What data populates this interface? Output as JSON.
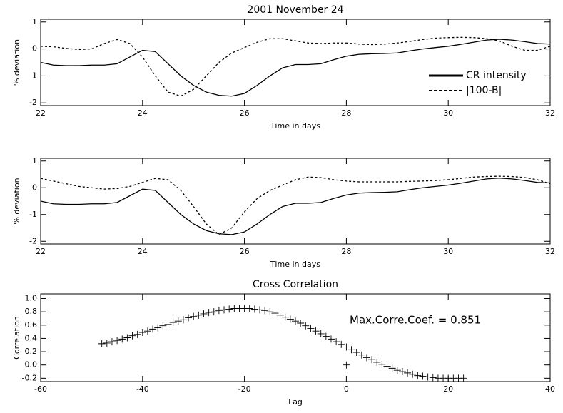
{
  "chart_data": [
    {
      "type": "line",
      "title": "2001 November    24",
      "xlabel": "Time in days",
      "ylabel": "% deviation",
      "x": [
        22,
        22.25,
        22.5,
        22.75,
        23,
        23.25,
        23.5,
        23.75,
        24,
        24.25,
        24.5,
        24.75,
        25,
        25.25,
        25.5,
        25.75,
        26,
        26.25,
        26.5,
        26.75,
        27,
        27.25,
        27.5,
        27.75,
        28,
        28.25,
        28.5,
        28.75,
        29,
        29.25,
        29.5,
        29.75,
        30,
        30.25,
        30.5,
        30.75,
        31,
        31.25,
        31.5,
        31.75,
        32
      ],
      "series": [
        {
          "name": "CR intensity",
          "color": "#000000",
          "linestyle": "solid",
          "values": [
            -0.5,
            -0.6,
            -0.62,
            -0.62,
            -0.6,
            -0.6,
            -0.55,
            -0.3,
            -0.05,
            -0.1,
            -0.55,
            -1.0,
            -1.35,
            -1.6,
            -1.72,
            -1.75,
            -1.65,
            -1.35,
            -1.0,
            -0.7,
            -0.58,
            -0.58,
            -0.55,
            -0.4,
            -0.27,
            -0.2,
            -0.18,
            -0.17,
            -0.15,
            -0.07,
            0.0,
            0.05,
            0.1,
            0.17,
            0.25,
            0.33,
            0.36,
            0.33,
            0.27,
            0.2,
            0.18
          ]
        },
        {
          "name": "|100-B|",
          "color": "#000000",
          "linestyle": "dashed",
          "values": [
            0.1,
            0.08,
            0.02,
            -0.02,
            0.0,
            0.2,
            0.35,
            0.2,
            -0.3,
            -1.0,
            -1.6,
            -1.75,
            -1.5,
            -1.0,
            -0.5,
            -0.15,
            0.05,
            0.25,
            0.38,
            0.38,
            0.3,
            0.22,
            0.2,
            0.22,
            0.22,
            0.18,
            0.16,
            0.18,
            0.22,
            0.28,
            0.35,
            0.4,
            0.42,
            0.43,
            0.42,
            0.38,
            0.3,
            0.1,
            -0.05,
            -0.05,
            0.1
          ]
        }
      ],
      "xlim": [
        22,
        32
      ],
      "xticks": [
        22,
        24,
        26,
        28,
        30,
        32
      ],
      "ylim": [
        -2.1,
        1.1
      ],
      "yticks": [
        1,
        0,
        -1,
        -2
      ],
      "legend": "lower right"
    },
    {
      "type": "line",
      "xlabel": "Time in days",
      "ylabel": "% deviation",
      "x": [
        22,
        22.25,
        22.5,
        22.75,
        23,
        23.25,
        23.5,
        23.75,
        24,
        24.25,
        24.5,
        24.75,
        25,
        25.25,
        25.5,
        25.75,
        26,
        26.25,
        26.5,
        26.75,
        27,
        27.25,
        27.5,
        27.75,
        28,
        28.25,
        28.5,
        28.75,
        29,
        29.25,
        29.5,
        29.75,
        30,
        30.25,
        30.5,
        30.75,
        31,
        31.25,
        31.5,
        31.75,
        32
      ],
      "series": [
        {
          "color": "#000000",
          "linestyle": "solid",
          "values": [
            -0.5,
            -0.6,
            -0.62,
            -0.62,
            -0.6,
            -0.6,
            -0.55,
            -0.3,
            -0.05,
            -0.1,
            -0.55,
            -1.0,
            -1.35,
            -1.6,
            -1.72,
            -1.75,
            -1.65,
            -1.35,
            -1.0,
            -0.7,
            -0.58,
            -0.58,
            -0.55,
            -0.4,
            -0.27,
            -0.2,
            -0.18,
            -0.17,
            -0.15,
            -0.07,
            0.0,
            0.05,
            0.1,
            0.17,
            0.25,
            0.33,
            0.36,
            0.33,
            0.27,
            0.2,
            0.18
          ]
        },
        {
          "color": "#000000",
          "linestyle": "dashed",
          "values": [
            0.35,
            0.25,
            0.15,
            0.05,
            0.0,
            -0.05,
            -0.03,
            0.05,
            0.2,
            0.35,
            0.3,
            -0.1,
            -0.7,
            -1.35,
            -1.75,
            -1.5,
            -0.9,
            -0.4,
            -0.1,
            0.1,
            0.3,
            0.4,
            0.38,
            0.3,
            0.25,
            0.22,
            0.22,
            0.22,
            0.22,
            0.24,
            0.25,
            0.27,
            0.3,
            0.35,
            0.4,
            0.42,
            0.43,
            0.42,
            0.38,
            0.3,
            0.15
          ]
        }
      ],
      "xlim": [
        22,
        32
      ],
      "xticks": [
        22,
        24,
        26,
        28,
        30,
        32
      ],
      "ylim": [
        -2.1,
        1.1
      ],
      "yticks": [
        1,
        0,
        -1,
        -2
      ]
    },
    {
      "type": "scatter",
      "title": "Cross Correlation",
      "xlabel": "Lag",
      "ylabel": "Correlation",
      "annotation": "Max.Corre.Coef. =  0.851",
      "color": "#000000",
      "x": [
        -48,
        -47,
        -46,
        -45,
        -44,
        -43,
        -42,
        -41,
        -40,
        -39,
        -38,
        -37,
        -36,
        -35,
        -34,
        -33,
        -32,
        -31,
        -30,
        -29,
        -28,
        -27,
        -26,
        -25,
        -24,
        -23,
        -22,
        -21,
        -20,
        -19,
        -18,
        -17,
        -16,
        -15,
        -14,
        -13,
        -12,
        -11,
        -10,
        -9,
        -8,
        -7,
        -6,
        -5,
        -4,
        -3,
        -2,
        -1,
        0,
        1,
        2,
        3,
        4,
        5,
        6,
        7,
        8,
        9,
        10,
        11,
        12,
        13,
        14,
        15,
        16,
        17,
        18,
        19,
        20,
        21,
        22,
        23,
        0
      ],
      "values": [
        0.32,
        0.33,
        0.35,
        0.37,
        0.39,
        0.41,
        0.44,
        0.46,
        0.49,
        0.51,
        0.54,
        0.56,
        0.59,
        0.61,
        0.64,
        0.66,
        0.68,
        0.71,
        0.73,
        0.75,
        0.77,
        0.79,
        0.8,
        0.82,
        0.83,
        0.84,
        0.85,
        0.85,
        0.85,
        0.85,
        0.84,
        0.83,
        0.82,
        0.8,
        0.78,
        0.75,
        0.72,
        0.69,
        0.66,
        0.63,
        0.59,
        0.55,
        0.51,
        0.47,
        0.43,
        0.39,
        0.35,
        0.31,
        0.27,
        0.23,
        0.19,
        0.15,
        0.11,
        0.08,
        0.04,
        0.01,
        -0.02,
        -0.05,
        -0.08,
        -0.1,
        -0.12,
        -0.14,
        -0.16,
        -0.17,
        -0.18,
        -0.19,
        -0.2,
        -0.2,
        -0.2,
        -0.2,
        -0.2,
        -0.2,
        0.0
      ],
      "xlim": [
        -60,
        40
      ],
      "xticks": [
        -60,
        -40,
        -20,
        0,
        20,
        40
      ],
      "ylim": [
        -0.25,
        1.07
      ],
      "yticks": [
        {
          "value": 1,
          "label": "1.0"
        },
        0.8,
        0.6,
        0.4,
        0.2,
        {
          "value": 0,
          "label": "0.0"
        },
        -0.2
      ]
    }
  ]
}
